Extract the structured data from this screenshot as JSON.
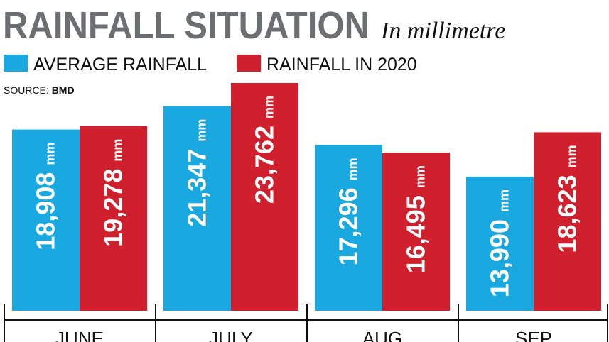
{
  "chart_data": {
    "type": "bar",
    "title": "RAINFALL SITUATION",
    "subtitle": "In millimetre",
    "source_label": "SOURCE:",
    "source": "BMD",
    "categories": [
      "JUNE",
      "JULY",
      "AUG",
      "SEP"
    ],
    "value_unit": "mm",
    "series": [
      {
        "name": "AVERAGE RAINFALL",
        "color": "#1aa8e0",
        "values": [
          18908,
          21347,
          17296,
          13990
        ],
        "value_labels": [
          "18,908",
          "21,347",
          "17,296",
          "13,990"
        ]
      },
      {
        "name": "RAINFALL IN 2020",
        "color": "#d0202e",
        "values": [
          19278,
          23762,
          16495,
          18623
        ],
        "value_labels": [
          "19,278",
          "23,762",
          "16,495",
          "18,623"
        ]
      }
    ]
  }
}
